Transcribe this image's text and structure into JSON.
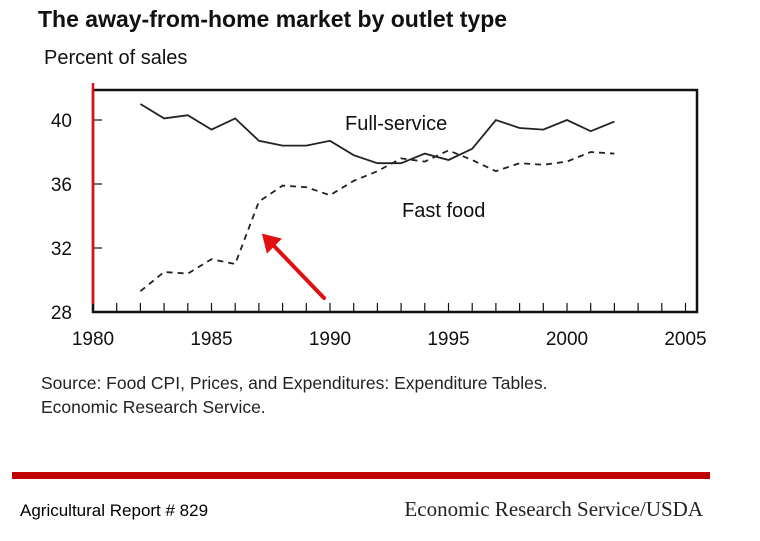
{
  "chart_data": {
    "type": "line",
    "title": "The away-from-home market by outlet type",
    "ylabel": "Percent of sales",
    "xlabel": "",
    "xlim": [
      1980,
      2005.4
    ],
    "ylim": [
      28,
      42
    ],
    "x_ticks": [
      1980,
      1985,
      1990,
      1995,
      2000,
      2005
    ],
    "y_ticks": [
      28,
      32,
      36,
      40
    ],
    "grid": false,
    "x": [
      1982,
      1983,
      1984,
      1985,
      1986,
      1987,
      1988,
      1989,
      1990,
      1991,
      1992,
      1993,
      1994,
      1995,
      1996,
      1997,
      1998,
      1999,
      2000,
      2001,
      2002
    ],
    "series": [
      {
        "name": "Full-service",
        "style": "solid",
        "values": [
          41.0,
          40.1,
          40.3,
          39.4,
          40.1,
          38.7,
          38.4,
          38.4,
          38.7,
          37.8,
          37.3,
          37.3,
          37.9,
          37.5,
          38.2,
          40.0,
          39.5,
          39.4,
          40.0,
          39.3,
          39.9
        ]
      },
      {
        "name": "Fast food",
        "style": "dashed",
        "values": [
          29.3,
          30.5,
          30.4,
          31.3,
          31.0,
          34.9,
          35.9,
          35.8,
          35.3,
          36.2,
          36.8,
          37.6,
          37.4,
          38.1,
          37.5,
          36.8,
          37.3,
          37.2,
          37.4,
          38.0,
          37.9
        ]
      }
    ],
    "annotations": [
      "Full-service",
      "Fast food"
    ],
    "source": [
      "Source:  Food CPI, Prices, and Expenditures: Expenditure Tables.",
      "Economic Research Service."
    ],
    "marker_year": 1980,
    "arrow_target": [
      1987,
      32.9
    ]
  },
  "footer": {
    "left": "Agricultural Report # 829",
    "right": "Economic Research Service/USDA"
  },
  "colors": {
    "accent_red": "#e01010",
    "bar_red": "#c00000",
    "line": "#222222"
  }
}
